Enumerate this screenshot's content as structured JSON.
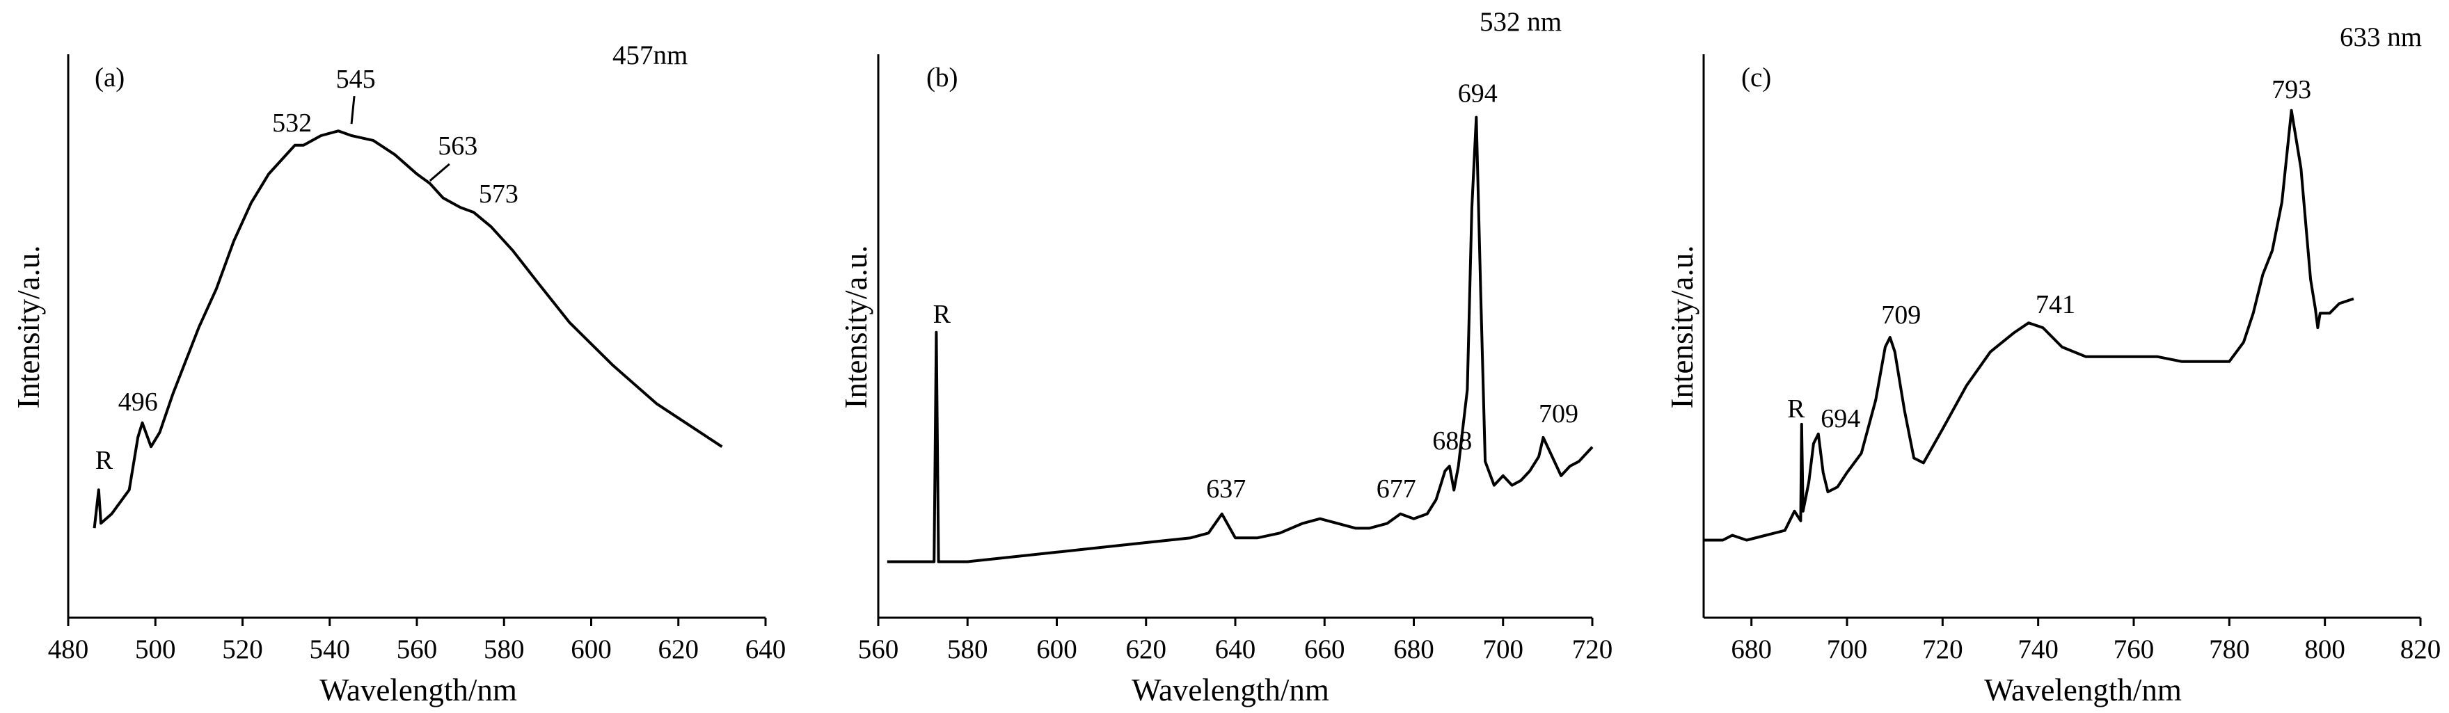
{
  "chart_data": [
    {
      "type": "line",
      "panel_label": "(a)",
      "excitation": "457nm",
      "xlabel": "Wavelength/nm",
      "ylabel": "Intensity/a.u.",
      "xlim": [
        480,
        640
      ],
      "xticks": [
        480,
        500,
        520,
        540,
        560,
        580,
        600,
        620,
        640
      ],
      "ylim": [
        0,
        100
      ],
      "series": [
        {
          "x": [
            486,
            487,
            487.5,
            490,
            494,
            496,
            497,
            499,
            501,
            504,
            507,
            510,
            514,
            518,
            522,
            526,
            530,
            532,
            534,
            538,
            542,
            545,
            550,
            555,
            560,
            563,
            566,
            570,
            573,
            577,
            582,
            588,
            595,
            605,
            615,
            625,
            630
          ],
          "y": [
            10,
            18,
            11,
            13,
            18,
            29,
            32,
            27,
            30,
            38,
            45,
            52,
            60,
            70,
            78,
            84,
            88,
            90,
            90,
            92,
            93,
            92,
            91,
            88,
            84,
            82,
            79,
            77,
            76,
            73,
            68,
            61,
            53,
            44,
            36,
            30,
            27
          ]
        }
      ],
      "annotations": [
        {
          "text": "R",
          "x": 486,
          "y": 18
        },
        {
          "text": "496",
          "x": 496,
          "y": 32
        },
        {
          "text": "532",
          "x": 532,
          "y": 90
        },
        {
          "text": "545",
          "x": 545,
          "y": 93
        },
        {
          "text": "563",
          "x": 563,
          "y": 82
        },
        {
          "text": "573",
          "x": 573,
          "y": 76
        }
      ]
    },
    {
      "type": "line",
      "panel_label": "(b)",
      "excitation": "532 nm",
      "xlabel": "Wavelength/nm",
      "ylabel": "Intensity/a.u.",
      "xlim": [
        560,
        720
      ],
      "xticks": [
        560,
        580,
        600,
        620,
        640,
        660,
        680,
        700,
        720
      ],
      "ylim": [
        0,
        100
      ],
      "series": [
        {
          "x": [
            562,
            565,
            570,
            572.5,
            573,
            573.5,
            576,
            580,
            590,
            600,
            610,
            620,
            630,
            634,
            637,
            640,
            645,
            650,
            655,
            659,
            663,
            667,
            670,
            674,
            677,
            680,
            683,
            685,
            686,
            687,
            688,
            689,
            690,
            692,
            693,
            694,
            695,
            696,
            698,
            700,
            702,
            704,
            706,
            708,
            709,
            711,
            713,
            715,
            717,
            720
          ],
          "y": [
            4,
            4,
            4,
            4,
            52,
            4,
            4,
            4,
            5,
            6,
            7,
            8,
            9,
            10,
            14,
            9,
            9,
            10,
            12,
            13,
            12,
            11,
            11,
            12,
            14,
            13,
            14,
            17,
            20,
            23,
            24,
            19,
            24,
            40,
            78,
            97,
            60,
            25,
            20,
            22,
            20,
            21,
            23,
            26,
            30,
            26,
            22,
            24,
            25,
            28
          ]
        }
      ],
      "annotations": [
        {
          "text": "R",
          "x": 573,
          "y": 52
        },
        {
          "text": "637",
          "x": 637,
          "y": 14
        },
        {
          "text": "677",
          "x": 677,
          "y": 14
        },
        {
          "text": "688",
          "x": 688,
          "y": 24
        },
        {
          "text": "694",
          "x": 694,
          "y": 97
        },
        {
          "text": "709",
          "x": 709,
          "y": 30
        }
      ]
    },
    {
      "type": "line",
      "panel_label": "(c)",
      "excitation": "633 nm",
      "xlabel": "Wavelength/nm",
      "ylabel": "Intensity/a.u.",
      "xlim": [
        670,
        820
      ],
      "xticks": [
        680,
        700,
        720,
        740,
        760,
        780,
        800,
        820
      ],
      "ylim": [
        0,
        100
      ],
      "series": [
        {
          "x": [
            670,
            674,
            676,
            679,
            683,
            687,
            689,
            690.3,
            690.5,
            690.8,
            692,
            693,
            694,
            695,
            696,
            698,
            700,
            703,
            706,
            708,
            709,
            710,
            712,
            714,
            716,
            720,
            725,
            730,
            735,
            738,
            741,
            745,
            750,
            755,
            760,
            765,
            770,
            775,
            780,
            783,
            785,
            787,
            789,
            791,
            793,
            795,
            797,
            798,
            798.5,
            799,
            801,
            803,
            806
          ],
          "y": [
            8,
            8,
            9,
            8,
            9,
            10,
            14,
            12,
            32,
            14,
            20,
            28,
            30,
            22,
            18,
            19,
            22,
            26,
            37,
            48,
            50,
            47,
            35,
            25,
            24,
            31,
            40,
            47,
            51,
            53,
            52,
            48,
            46,
            46,
            46,
            46,
            45,
            45,
            45,
            49,
            55,
            63,
            68,
            78,
            97,
            85,
            62,
            56,
            52,
            55,
            55,
            57,
            58
          ]
        }
      ],
      "annotations": [
        {
          "text": "R",
          "x": 690.5,
          "y": 32
        },
        {
          "text": "694",
          "x": 694,
          "y": 30
        },
        {
          "text": "709",
          "x": 709,
          "y": 50
        },
        {
          "text": "741",
          "x": 741,
          "y": 53
        },
        {
          "text": "793",
          "x": 793,
          "y": 97
        }
      ]
    }
  ]
}
